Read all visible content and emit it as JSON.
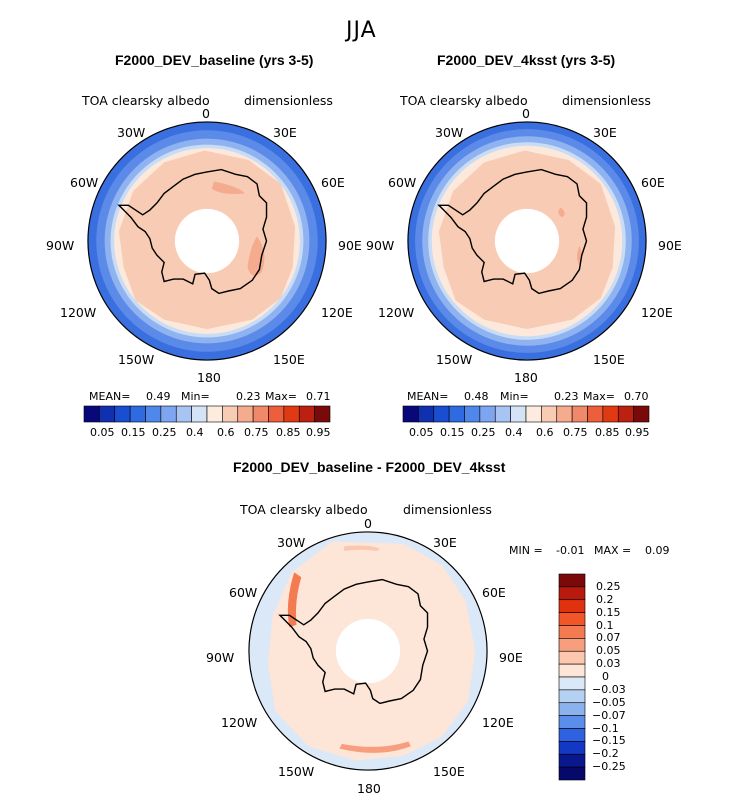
{
  "figure": {
    "season": "JJA"
  },
  "panels": [
    {
      "title": "F2000_DEV_baseline (yrs 3-5)",
      "variable": "TOA clearsky albedo",
      "units": "dimensionless",
      "lon_labels": [
        "0",
        "30E",
        "60E",
        "90E",
        "120E",
        "150E",
        "180",
        "150W",
        "120W",
        "90W",
        "60W",
        "30W"
      ],
      "stats": {
        "mean_label": "MEAN=",
        "mean": "0.49",
        "min_label": "Min=",
        "min": "0.23",
        "max_label": "Max=",
        "max": "0.71"
      }
    },
    {
      "title": "F2000_DEV_4ksst (yrs 3-5)",
      "variable": "TOA clearsky albedo",
      "units": "dimensionless",
      "lon_labels": [
        "0",
        "30E",
        "60E",
        "90E",
        "120E",
        "150E",
        "180",
        "150W",
        "120W",
        "90W",
        "60W",
        "30W"
      ],
      "stats": {
        "mean_label": "MEAN=",
        "mean": "0.48",
        "min_label": "Min=",
        "min": "0.23",
        "max_label": "Max=",
        "max": "0.70"
      }
    },
    {
      "title": "F2000_DEV_baseline - F2000_DEV_4ksst",
      "variable": "TOA clearsky albedo",
      "units": "dimensionless",
      "lon_labels": [
        "0",
        "30E",
        "60E",
        "90E",
        "120E",
        "150E",
        "180",
        "150W",
        "120W",
        "90W",
        "60W",
        "30W"
      ],
      "stats": {
        "min_label": "MIN =",
        "min": "-0.01",
        "max_label": "MAX =",
        "max": "0.09"
      }
    }
  ],
  "colorbar_abs": {
    "tick_labels": [
      "0.05",
      "0.15",
      "0.25",
      "0.4",
      "0.6",
      "0.75",
      "0.85",
      "0.95"
    ],
    "colors": [
      "#08087a",
      "#1030b0",
      "#1a4ed0",
      "#2e6ae0",
      "#4f88ea",
      "#7ea6f0",
      "#a8c4f2",
      "#d4e4f6",
      "#fdebe0",
      "#f8cbb5",
      "#f4ab8e",
      "#f0886a",
      "#ed5f3c",
      "#e03a14",
      "#bb2010",
      "#7a0a0a"
    ]
  },
  "colorbar_diff": {
    "tick_labels": [
      "0.25",
      "0.2",
      "0.15",
      "0.1",
      "0.07",
      "0.05",
      "0.03",
      "0",
      "−0.03",
      "−0.05",
      "−0.07",
      "−0.1",
      "−0.15",
      "−0.2",
      "−0.25"
    ],
    "colors": [
      "#7a0a0a",
      "#b81a0e",
      "#e0320e",
      "#f25628",
      "#f47a52",
      "#f79e7e",
      "#fbc7ae",
      "#fde6d8",
      "#dbe8f8",
      "#b6d0f2",
      "#8cb2ee",
      "#5a8eea",
      "#2e62e0",
      "#1238c4",
      "#0a1890",
      "#06086a"
    ]
  },
  "chart_data": [
    {
      "type": "heatmap",
      "projection": "south polar stereographic",
      "title": "F2000_DEV_baseline (yrs 3-5)",
      "field": "TOA clearsky albedo",
      "units": "dimensionless",
      "mean": 0.49,
      "min": 0.23,
      "max": 0.71,
      "contour_levels": [
        0.05,
        0.1,
        0.15,
        0.2,
        0.25,
        0.3,
        0.4,
        0.5,
        0.6,
        0.65,
        0.75,
        0.8,
        0.85,
        0.9,
        0.95
      ]
    },
    {
      "type": "heatmap",
      "projection": "south polar stereographic",
      "title": "F2000_DEV_4ksst (yrs 3-5)",
      "field": "TOA clearsky albedo",
      "units": "dimensionless",
      "mean": 0.48,
      "min": 0.23,
      "max": 0.7,
      "contour_levels": [
        0.05,
        0.1,
        0.15,
        0.2,
        0.25,
        0.3,
        0.4,
        0.5,
        0.6,
        0.65,
        0.75,
        0.8,
        0.85,
        0.9,
        0.95
      ]
    },
    {
      "type": "heatmap",
      "projection": "south polar stereographic",
      "title": "F2000_DEV_baseline - F2000_DEV_4ksst",
      "field": "TOA clearsky albedo difference",
      "units": "dimensionless",
      "min": -0.01,
      "max": 0.09,
      "contour_levels": [
        -0.25,
        -0.2,
        -0.15,
        -0.1,
        -0.07,
        -0.05,
        -0.03,
        0,
        0.03,
        0.05,
        0.07,
        0.1,
        0.15,
        0.2,
        0.25
      ]
    }
  ]
}
